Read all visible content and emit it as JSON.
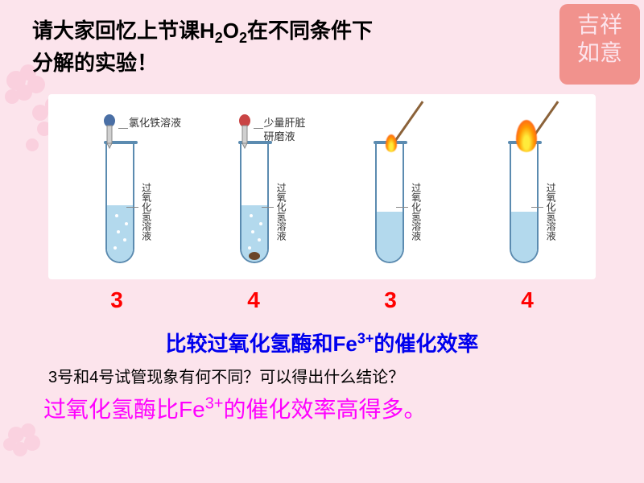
{
  "title": {
    "line1": "请大家回忆上节课H",
    "sub1": "2",
    "mid": "O",
    "sub2": "2",
    "line2": "在不同条件下",
    "line3": "分解的实验！"
  },
  "tubes": [
    {
      "topLabel": "氯化铁溶液",
      "liquidLabel": "过氧化氢溶液",
      "liquid_height": 70,
      "bubbles": true,
      "sediment": false,
      "topType": "dropper_blue",
      "flame": null
    },
    {
      "topLabel": "少量肝脏\n研磨液",
      "liquidLabel": "过氧化氢溶液",
      "liquid_height": 70,
      "bubbles": true,
      "sediment": true,
      "topType": "dropper_red",
      "flame": null
    },
    {
      "topLabel": null,
      "liquidLabel": "过氧化氢溶液",
      "liquid_height": 62,
      "bubbles": false,
      "sediment": false,
      "topType": "stick",
      "flame": "small"
    },
    {
      "topLabel": null,
      "liquidLabel": "过氧化氢溶液",
      "liquid_height": 62,
      "bubbles": false,
      "sediment": false,
      "topType": "stick",
      "flame": "large"
    }
  ],
  "numbers": [
    "3",
    "4",
    "3",
    "4"
  ],
  "heading": {
    "pre": "比较过氧化氢酶和Fe",
    "sup": "3+",
    "post": "的催化效率"
  },
  "question": "3号和4号试管现象有何不同？可以得出什么结论？",
  "conclusion": {
    "pre": "过氧化氢酶比Fe",
    "sup": "3+",
    "post": "的催化效率高得多。"
  },
  "colors": {
    "bg": "#fce4ec",
    "liquid": "#b3d9ed",
    "tube_border": "#5b8bb0",
    "red": "#ff0000",
    "blue": "#0000ee",
    "magenta": "#ff00ff"
  }
}
